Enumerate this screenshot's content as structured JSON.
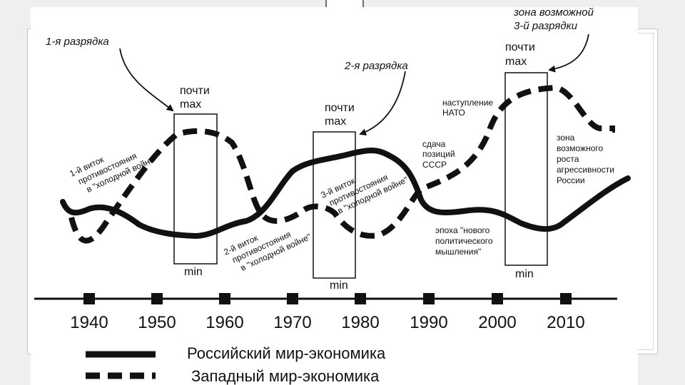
{
  "labels": {
    "detente1": "1-я разрядка",
    "detente2": "2-я разрядка",
    "zone3_l1": "зона возможной",
    "zone3_l2": "3-й разрядки",
    "max_l1": "почти",
    "max_l2": "max",
    "min": "min",
    "nato_l1": "наступление",
    "nato_l2": "НАТО",
    "ussr_l1": "сдача",
    "ussr_l2": "позиций",
    "ussr_l3": "СССР",
    "aggr_l1": "зона",
    "aggr_l2": "возможного",
    "aggr_l3": "роста",
    "aggr_l4": "агрессивности",
    "aggr_l5": "России",
    "newthink_l1": "эпоха \"нового",
    "newthink_l2": "политического",
    "newthink_l3": "мышления\"",
    "round1_l1": "1-й виток",
    "round1_l2": "противостояния",
    "round1_l3": "в \"холодной войне\"",
    "round2_l1": "2-й виток",
    "round2_l2": "противостояния",
    "round2_l3": "в \"холодной войне\"",
    "round3_l1": "3-й виток",
    "round3_l2": "противостояния",
    "round3_l3": "в \"холодной войне\""
  },
  "axis": {
    "years": [
      "1940",
      "1950",
      "1960",
      "1970",
      "1980",
      "1990",
      "2000",
      "2010"
    ]
  },
  "legend": {
    "russian": "Российский мир-экономика",
    "western": "Западный мир-экономика"
  }
}
